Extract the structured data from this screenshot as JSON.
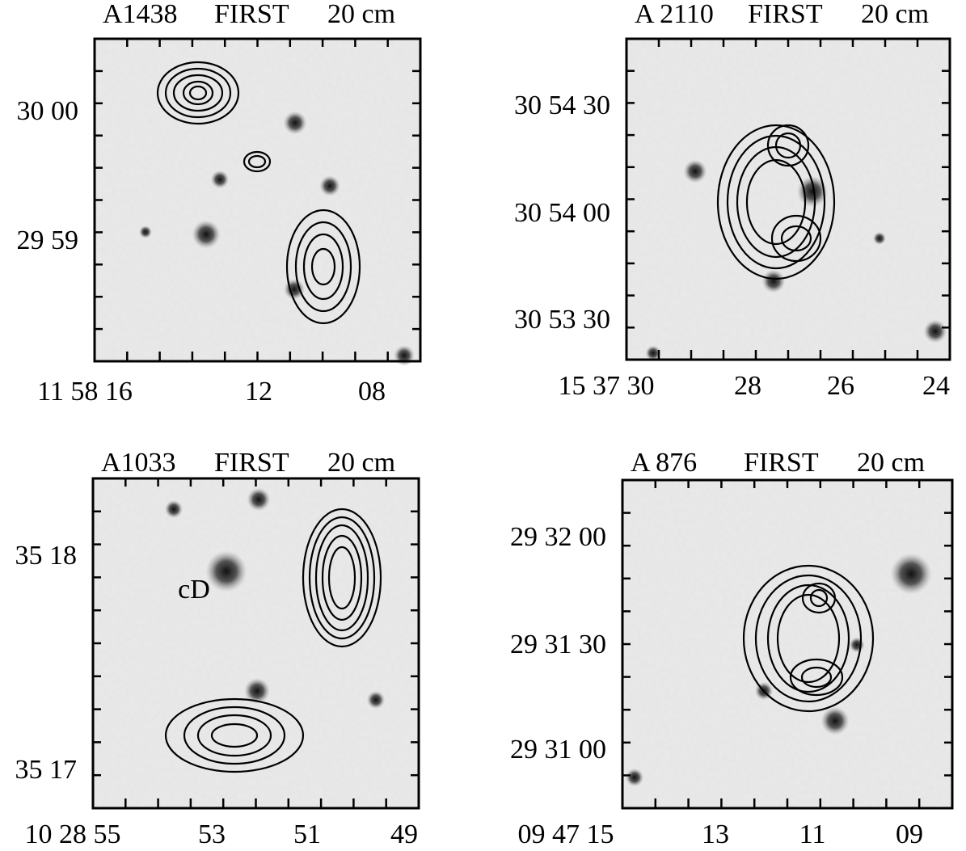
{
  "panels": [
    {
      "title": [
        "A1438",
        "FIRST",
        "20 cm"
      ],
      "y_labels": [
        "30 00",
        "29 59"
      ],
      "x_labels": [
        "11 58 16",
        "12",
        "08"
      ]
    },
    {
      "title": [
        "A 2110",
        "FIRST",
        "20 cm"
      ],
      "y_labels": [
        "30 54 30",
        "30 54 00",
        "30 53 30"
      ],
      "x_labels": [
        "15 37 30",
        "28",
        "26",
        "24"
      ]
    },
    {
      "title": [
        "A1033",
        "FIRST",
        "20 cm"
      ],
      "y_labels": [
        "35 18",
        "35 17"
      ],
      "x_labels": [
        "10 28 55",
        "53",
        "51",
        "49"
      ],
      "annotation": "cD"
    },
    {
      "title": [
        "A 876",
        "FIRST",
        "20 cm"
      ],
      "y_labels": [
        "29 32 00",
        "29 31 30",
        "29 31 00"
      ],
      "x_labels": [
        "09 47 15",
        "13",
        "11",
        "09"
      ]
    }
  ]
}
